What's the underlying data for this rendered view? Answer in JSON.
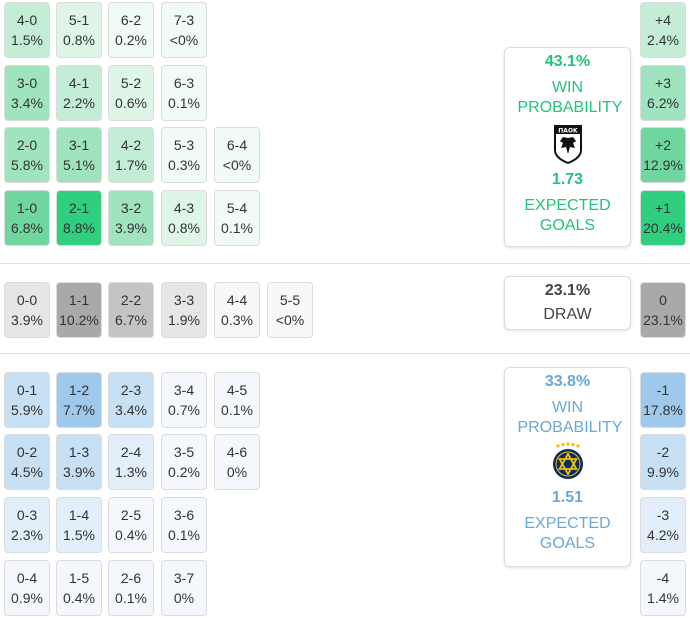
{
  "colors": {
    "home": "#22c47a",
    "away": "#6aa8d8",
    "draw_text": "#444444",
    "home_fills": [
      "#f1fbf5",
      "#dff5e8",
      "#c3edd5",
      "#9fe3bf",
      "#6fd6a0",
      "#2fcf7f"
    ],
    "away_fills": [
      "#f4f8fd",
      "#e2eef9",
      "#c7e0f4",
      "#9ec8ec"
    ],
    "draw_fills": [
      "#f8f8f8",
      "#e6e6e6",
      "#c4c4c4",
      "#a9a9a9"
    ]
  },
  "home": {
    "win_probability": "43.1%",
    "win_label": "WIN PROBABILITY",
    "expected_goals": "1.73",
    "xg_label": "EXPECTED GOALS",
    "crest_text": "ΠΑΟΚ",
    "crest_icon": "paok-eagle-crest-icon"
  },
  "away": {
    "win_probability": "33.8%",
    "win_label": "WIN PROBABILITY",
    "expected_goals": "1.51",
    "xg_label": "EXPECTED GOALS",
    "crest_icon": "maccabi-star-crest-icon"
  },
  "draw": {
    "probability": "23.1%",
    "label": "DRAW"
  },
  "chart_data": {
    "type": "heatmap",
    "title": "",
    "scorelines": {
      "home_wins": [
        [
          "4-0",
          "1.5%"
        ],
        [
          "5-1",
          "0.8%"
        ],
        [
          "6-2",
          "0.2%"
        ],
        [
          "7-3",
          "<0%"
        ],
        [
          "3-0",
          "3.4%"
        ],
        [
          "4-1",
          "2.2%"
        ],
        [
          "5-2",
          "0.6%"
        ],
        [
          "6-3",
          "0.1%"
        ],
        [
          "2-0",
          "5.8%"
        ],
        [
          "3-1",
          "5.1%"
        ],
        [
          "4-2",
          "1.7%"
        ],
        [
          "5-3",
          "0.3%"
        ],
        [
          "6-4",
          "<0%"
        ],
        [
          "1-0",
          "6.8%"
        ],
        [
          "2-1",
          "8.8%"
        ],
        [
          "3-2",
          "3.9%"
        ],
        [
          "4-3",
          "0.8%"
        ],
        [
          "5-4",
          "0.1%"
        ]
      ],
      "draws": [
        [
          "0-0",
          "3.9%"
        ],
        [
          "1-1",
          "10.2%"
        ],
        [
          "2-2",
          "6.7%"
        ],
        [
          "3-3",
          "1.9%"
        ],
        [
          "4-4",
          "0.3%"
        ],
        [
          "5-5",
          "<0%"
        ]
      ],
      "away_wins": [
        [
          "0-1",
          "5.9%"
        ],
        [
          "1-2",
          "7.7%"
        ],
        [
          "2-3",
          "3.4%"
        ],
        [
          "3-4",
          "0.7%"
        ],
        [
          "4-5",
          "0.1%"
        ],
        [
          "0-2",
          "4.5%"
        ],
        [
          "1-3",
          "3.9%"
        ],
        [
          "2-4",
          "1.3%"
        ],
        [
          "3-5",
          "0.2%"
        ],
        [
          "4-6",
          "0%"
        ],
        [
          "0-3",
          "2.3%"
        ],
        [
          "1-4",
          "1.5%"
        ],
        [
          "2-5",
          "0.4%"
        ],
        [
          "3-6",
          "0.1%"
        ],
        [
          "0-4",
          "0.9%"
        ],
        [
          "1-5",
          "0.4%"
        ],
        [
          "2-6",
          "0.1%"
        ],
        [
          "3-7",
          "0%"
        ]
      ]
    },
    "margins": [
      [
        "+4",
        "2.4%"
      ],
      [
        "+3",
        "6.2%"
      ],
      [
        "+2",
        "12.9%"
      ],
      [
        "+1",
        "20.4%"
      ],
      [
        "0",
        "23.1%"
      ],
      [
        "-1",
        "17.8%"
      ],
      [
        "-2",
        "9.9%"
      ],
      [
        "-3",
        "4.2%"
      ],
      [
        "-4",
        "1.4%"
      ]
    ]
  }
}
